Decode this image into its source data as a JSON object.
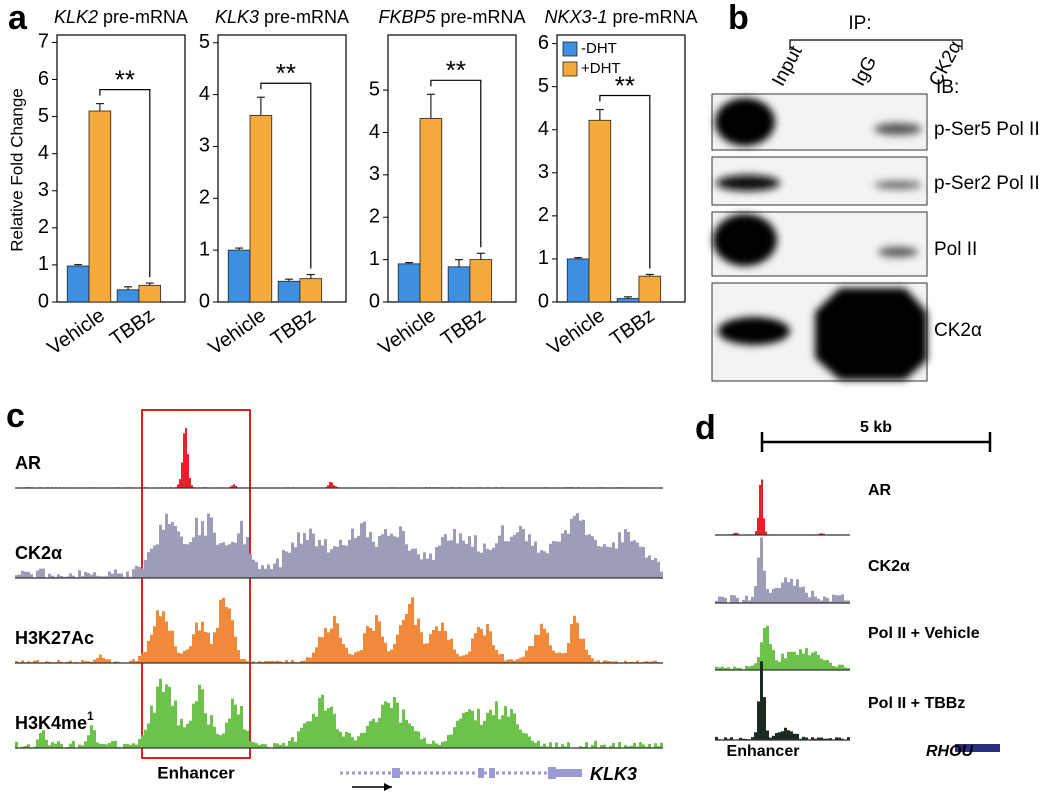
{
  "panel_labels": [
    "a",
    "b",
    "c",
    "d"
  ],
  "chart_data": [
    {
      "type": "bar",
      "title": [
        "KLK2",
        "pre-mRNA"
      ],
      "y_label": "Relative Fold Change",
      "categories": [
        "Vehicle",
        "TBBz"
      ],
      "series": [
        {
          "color": "#3d8fe0",
          "values": [
            0.97,
            0.33
          ],
          "errors": [
            0.04,
            0.08
          ]
        },
        {
          "color": "#f6aa3c",
          "values": [
            5.15,
            0.45
          ],
          "errors": [
            0.2,
            0.06
          ]
        }
      ],
      "ylim": [
        0,
        7.2
      ],
      "yticks": [
        0,
        1,
        2,
        3,
        4,
        5,
        6,
        7
      ],
      "significance": "**"
    },
    {
      "type": "bar",
      "title": [
        "KLK3",
        "pre-mRNA"
      ],
      "categories": [
        "Vehicle",
        "TBBz"
      ],
      "series": [
        {
          "color": "#3d8fe0",
          "values": [
            1.0,
            0.4
          ],
          "errors": [
            0.04,
            0.04
          ]
        },
        {
          "color": "#f6aa3c",
          "values": [
            3.6,
            0.45
          ],
          "errors": [
            0.35,
            0.08
          ]
        }
      ],
      "ylim": [
        0,
        5.15
      ],
      "yticks": [
        0,
        1,
        2,
        3,
        4,
        5
      ],
      "significance": "**"
    },
    {
      "type": "bar",
      "title": [
        "FKBP5",
        "pre-mRNA"
      ],
      "categories": [
        "Vehicle",
        "TBBz"
      ],
      "series": [
        {
          "color": "#3d8fe0",
          "values": [
            0.9,
            0.83
          ],
          "errors": [
            0.03,
            0.17
          ]
        },
        {
          "color": "#f6aa3c",
          "values": [
            4.33,
            1.0
          ],
          "errors": [
            0.57,
            0.15
          ]
        }
      ],
      "ylim": [
        0,
        6.3
      ],
      "yticks": [
        0,
        1,
        2,
        3,
        4,
        5
      ],
      "significance": "**"
    },
    {
      "type": "bar",
      "title": [
        "NKX3-1",
        "pre-mRNA"
      ],
      "categories": [
        "Vehicle",
        "TBBz"
      ],
      "series": [
        {
          "name": "-DHT",
          "color": "#3d8fe0",
          "values": [
            1.0,
            0.08
          ],
          "errors": [
            0.03,
            0.04
          ]
        },
        {
          "name": "+DHT",
          "color": "#f6aa3c",
          "values": [
            4.22,
            0.6
          ],
          "errors": [
            0.25,
            0.04
          ]
        }
      ],
      "ylim": [
        0,
        6.2
      ],
      "yticks": [
        0,
        1,
        2,
        3,
        4,
        5,
        6
      ],
      "significance": "**",
      "legend": "upper left"
    }
  ],
  "blot": {
    "ip_label": "IP:",
    "ib_label": "IB:",
    "columns": [
      "Input",
      "IgG",
      "CK2α"
    ],
    "rows": [
      "p-Ser5 Pol II",
      "p-Ser2 Pol II",
      "Pol II",
      "CK2α"
    ]
  },
  "tracks_c": {
    "tracks": [
      {
        "label": "AR",
        "color": "#e8202a"
      },
      {
        "label": "CK2α",
        "color": "#9d9db8"
      },
      {
        "label": "H3K27Ac",
        "color": "#f08a3a"
      },
      {
        "label": "H3K4me",
        "label_sup": "1",
        "color": "#6cc24a"
      }
    ],
    "region_label": "Enhancer",
    "gene": "KLK3"
  },
  "tracks_d": {
    "scale_label": "5 kb",
    "tracks": [
      {
        "label": "AR",
        "color": "#e8202a"
      },
      {
        "label": "CK2α",
        "color": "#9d9db8"
      },
      {
        "label": "Pol II + Vehicle",
        "color": "#6cc24a"
      },
      {
        "label": "Pol II + TBBz",
        "color": "#1c2b22"
      }
    ],
    "region_label": "Enhancer",
    "gene": "RHOU"
  }
}
